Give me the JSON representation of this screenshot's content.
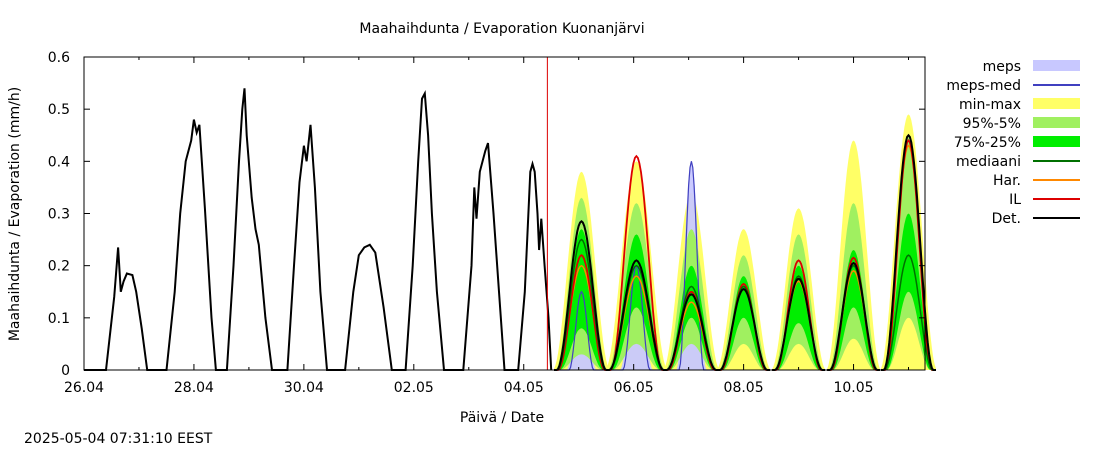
{
  "chart_data": {
    "type": "line",
    "title": "Maahaihdunta / Evaporation  Kuonanjärvi",
    "xlabel": "Päivä / Date",
    "ylabel": "Maahaihdunta / Evaporation (mm/h)",
    "ylim": [
      0,
      0.6
    ],
    "y_ticks": [
      "0",
      "0.1",
      "0.2",
      "0.3",
      "0.4",
      "0.5",
      "0.6"
    ],
    "x_range_days": [
      0,
      15.3
    ],
    "x_ticks": [
      {
        "day": 0,
        "label": "26.04"
      },
      {
        "day": 2,
        "label": "28.04"
      },
      {
        "day": 4,
        "label": "30.04"
      },
      {
        "day": 6,
        "label": "02.05"
      },
      {
        "day": 8,
        "label": "04.05"
      },
      {
        "day": 10,
        "label": "06.05"
      },
      {
        "day": 12,
        "label": "08.05"
      },
      {
        "day": 14,
        "label": "10.05"
      }
    ],
    "forecast_start_day": 8.43,
    "legend_position": "right",
    "legend": [
      {
        "label": "meps",
        "kind": "band",
        "color": "#c8c8ff"
      },
      {
        "label": "meps-med",
        "kind": "line",
        "color": "#4040c0"
      },
      {
        "label": "min-max",
        "kind": "band",
        "color": "#ffff66"
      },
      {
        "label": "95%-5%",
        "kind": "band",
        "color": "#a0f060"
      },
      {
        "label": "75%-25%",
        "kind": "band",
        "color": "#00ee00"
      },
      {
        "label": "mediaani",
        "kind": "line",
        "color": "#007000"
      },
      {
        "label": "Har.",
        "kind": "line",
        "color": "#ff8800"
      },
      {
        "label": "IL",
        "kind": "line",
        "color": "#dd0000"
      },
      {
        "label": "Det.",
        "kind": "line",
        "color": "#000000"
      }
    ],
    "observed": {
      "name": "Det.",
      "points": [
        [
          0,
          0
        ],
        [
          0.4,
          0
        ],
        [
          0.55,
          0.14
        ],
        [
          0.62,
          0.235
        ],
        [
          0.67,
          0.15
        ],
        [
          0.72,
          0.17
        ],
        [
          0.78,
          0.185
        ],
        [
          0.88,
          0.182
        ],
        [
          0.95,
          0.15
        ],
        [
          1.05,
          0.08
        ],
        [
          1.15,
          0
        ],
        [
          1.5,
          0
        ],
        [
          1.65,
          0.15
        ],
        [
          1.75,
          0.3
        ],
        [
          1.85,
          0.4
        ],
        [
          1.95,
          0.44
        ],
        [
          2.0,
          0.48
        ],
        [
          2.05,
          0.455
        ],
        [
          2.1,
          0.47
        ],
        [
          2.2,
          0.31
        ],
        [
          2.32,
          0.1
        ],
        [
          2.4,
          0
        ],
        [
          2.6,
          0
        ],
        [
          2.72,
          0.2
        ],
        [
          2.82,
          0.4
        ],
        [
          2.88,
          0.5
        ],
        [
          2.92,
          0.54
        ],
        [
          2.96,
          0.45
        ],
        [
          3.05,
          0.33
        ],
        [
          3.12,
          0.27
        ],
        [
          3.18,
          0.24
        ],
        [
          3.3,
          0.1
        ],
        [
          3.42,
          0
        ],
        [
          3.7,
          0
        ],
        [
          3.82,
          0.2
        ],
        [
          3.92,
          0.36
        ],
        [
          4.0,
          0.43
        ],
        [
          4.05,
          0.4
        ],
        [
          4.12,
          0.47
        ],
        [
          4.2,
          0.35
        ],
        [
          4.3,
          0.15
        ],
        [
          4.42,
          0
        ],
        [
          4.75,
          0
        ],
        [
          4.9,
          0.15
        ],
        [
          5.0,
          0.22
        ],
        [
          5.1,
          0.235
        ],
        [
          5.2,
          0.24
        ],
        [
          5.3,
          0.225
        ],
        [
          5.45,
          0.12
        ],
        [
          5.6,
          0
        ],
        [
          5.85,
          0
        ],
        [
          5.98,
          0.2
        ],
        [
          6.08,
          0.4
        ],
        [
          6.15,
          0.52
        ],
        [
          6.2,
          0.53
        ],
        [
          6.26,
          0.45
        ],
        [
          6.33,
          0.3
        ],
        [
          6.42,
          0.15
        ],
        [
          6.55,
          0
        ],
        [
          6.9,
          0
        ],
        [
          7.05,
          0.2
        ],
        [
          7.1,
          0.35
        ],
        [
          7.14,
          0.29
        ],
        [
          7.2,
          0.38
        ],
        [
          7.3,
          0.42
        ],
        [
          7.35,
          0.435
        ],
        [
          7.45,
          0.3
        ],
        [
          7.55,
          0.15
        ],
        [
          7.65,
          0
        ],
        [
          7.9,
          0
        ],
        [
          8.02,
          0.15
        ],
        [
          8.12,
          0.38
        ],
        [
          8.16,
          0.395
        ],
        [
          8.2,
          0.38
        ],
        [
          8.25,
          0.3
        ],
        [
          8.28,
          0.23
        ],
        [
          8.32,
          0.29
        ],
        [
          8.38,
          0.2
        ],
        [
          8.45,
          0.1
        ],
        [
          8.5,
          0
        ]
      ]
    },
    "forecast_days": [
      {
        "center": 9.05,
        "half": 0.5,
        "minmax": [
          0,
          0.38
        ],
        "p95": [
          0.03,
          0.33
        ],
        "p75": [
          0.08,
          0.27
        ],
        "mediaani": 0.25,
        "il": 0.22,
        "har": 0.2,
        "det": 0.285,
        "meps": 0.15
      },
      {
        "center": 10.05,
        "half": 0.55,
        "minmax": [
          0,
          0.4
        ],
        "p95": [
          0.05,
          0.32
        ],
        "p75": [
          0.12,
          0.26
        ],
        "mediaani": 0.2,
        "il": 0.41,
        "har": 0.18,
        "det": 0.21,
        "meps": 0.2
      },
      {
        "center": 11.05,
        "half": 0.5,
        "minmax": [
          0,
          0.34
        ],
        "p95": [
          0.05,
          0.27
        ],
        "p75": [
          0.1,
          0.2
        ],
        "mediaani": 0.16,
        "il": 0.15,
        "har": 0.13,
        "det": 0.145,
        "meps": 0.4
      },
      {
        "center": 12.0,
        "half": 0.48,
        "minmax": [
          0,
          0.27
        ],
        "p95": [
          0.05,
          0.22
        ],
        "p75": [
          0.1,
          0.18
        ],
        "mediaani": 0.16,
        "il": 0.165,
        "har": 0.155,
        "det": 0.155
      },
      {
        "center": 13.0,
        "half": 0.48,
        "minmax": [
          0,
          0.31
        ],
        "p95": [
          0.05,
          0.26
        ],
        "p75": [
          0.09,
          0.2
        ],
        "mediaani": 0.18,
        "il": 0.21,
        "har": 0.17,
        "det": 0.175
      },
      {
        "center": 14.0,
        "half": 0.48,
        "minmax": [
          0,
          0.44
        ],
        "p95": [
          0.06,
          0.32
        ],
        "p75": [
          0.12,
          0.23
        ],
        "mediaani": 0.2,
        "il": 0.215,
        "har": 0.19,
        "det": 0.205
      },
      {
        "center": 15.0,
        "half": 0.5,
        "minmax": [
          0,
          0.49
        ],
        "p95": [
          0.1,
          0.45
        ],
        "p75": [
          0.15,
          0.3
        ],
        "mediaani": 0.22,
        "il": 0.44,
        "har": 0.43,
        "det": 0.45
      }
    ]
  },
  "timestamp": "2025-05-04 07:31:10 EEST"
}
